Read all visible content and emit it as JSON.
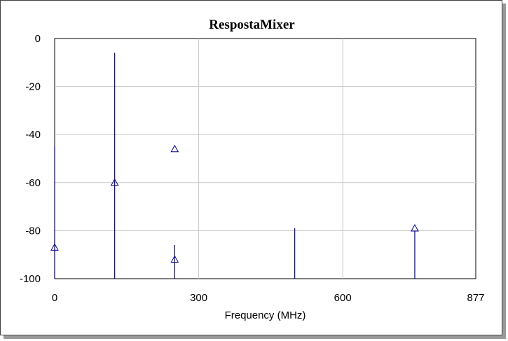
{
  "chart_data": {
    "type": "line",
    "title": "RespostaMixer",
    "xlabel": "Frequency (MHz)",
    "ylabel": "",
    "xlim": [
      0,
      877
    ],
    "ylim": [
      -100,
      0
    ],
    "xticks": [
      0,
      300,
      600,
      877
    ],
    "yticks": [
      0,
      -20,
      -40,
      -60,
      -80,
      -100
    ],
    "grid": true,
    "line_color": "#00008b",
    "series": [
      {
        "style": "spectral-lines",
        "x": [
          0,
          125,
          250,
          500,
          750
        ],
        "y": [
          -45,
          -6,
          -86,
          -79,
          -80
        ]
      },
      {
        "style": "triangle-markers",
        "x": [
          0,
          125,
          250,
          250,
          750
        ],
        "y": [
          -87,
          -60,
          -46,
          -92,
          -79
        ]
      }
    ]
  }
}
